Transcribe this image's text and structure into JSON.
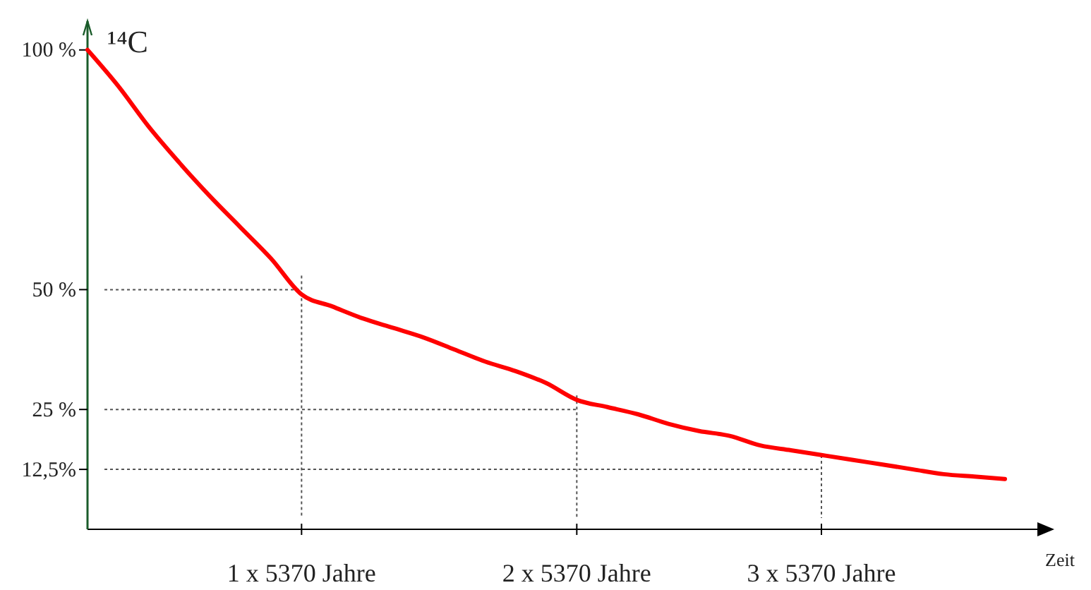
{
  "chart_data": {
    "type": "line",
    "ylabel": "¹⁴C",
    "xlabel": "Zeit",
    "categories": [
      null,
      null,
      null,
      null,
      null,
      null,
      null,
      "1 x 5370 Jahre",
      null,
      null,
      null,
      null,
      null,
      null,
      null,
      null,
      "2 x 5370 Jahre",
      null,
      null,
      null,
      null,
      null,
      null,
      null,
      "3 x 5370 Jahre",
      null,
      null,
      null,
      null,
      null,
      null
    ],
    "series": [
      {
        "color": "#ff0000",
        "values": [
          100,
          92.5,
          84,
          76.5,
          69.5,
          63,
          56.5,
          49,
          46.5,
          44,
          42,
          40,
          37.5,
          35,
          33,
          30.5,
          27,
          25.5,
          24,
          22,
          20.5,
          19.5,
          17.5,
          16.5,
          15.5,
          14.5,
          13.5,
          12.5,
          11.5,
          11,
          10.5
        ]
      }
    ],
    "ylim": [
      0,
      106
    ],
    "yticks": [
      {
        "value": 100,
        "label": "100 %"
      },
      {
        "value": 50,
        "label": "50 %"
      },
      {
        "value": 25,
        "label": "25 %"
      },
      {
        "value": 12.5,
        "label": "12,5%"
      }
    ],
    "ref_lines": [
      {
        "axis": "y",
        "value": 50,
        "line_style": "dotted",
        "color": "#555555"
      },
      {
        "axis": "y",
        "value": 25,
        "line_style": "dotted",
        "color": "#555555"
      },
      {
        "axis": "y",
        "value": 12.5,
        "line_style": "dotted",
        "color": "#555555"
      },
      {
        "axis": "x",
        "value": "1 x 5370 Jahre",
        "line_style": "dotted",
        "color": "#555555"
      },
      {
        "axis": "x",
        "value": "2 x 5370 Jahre",
        "line_style": "dotted",
        "color": "#555555"
      },
      {
        "axis": "x",
        "value": "3 x 5370 Jahre",
        "line_style": "dotted",
        "color": "#555555"
      }
    ],
    "grid": false,
    "marker": "none",
    "line_style": "solid"
  }
}
